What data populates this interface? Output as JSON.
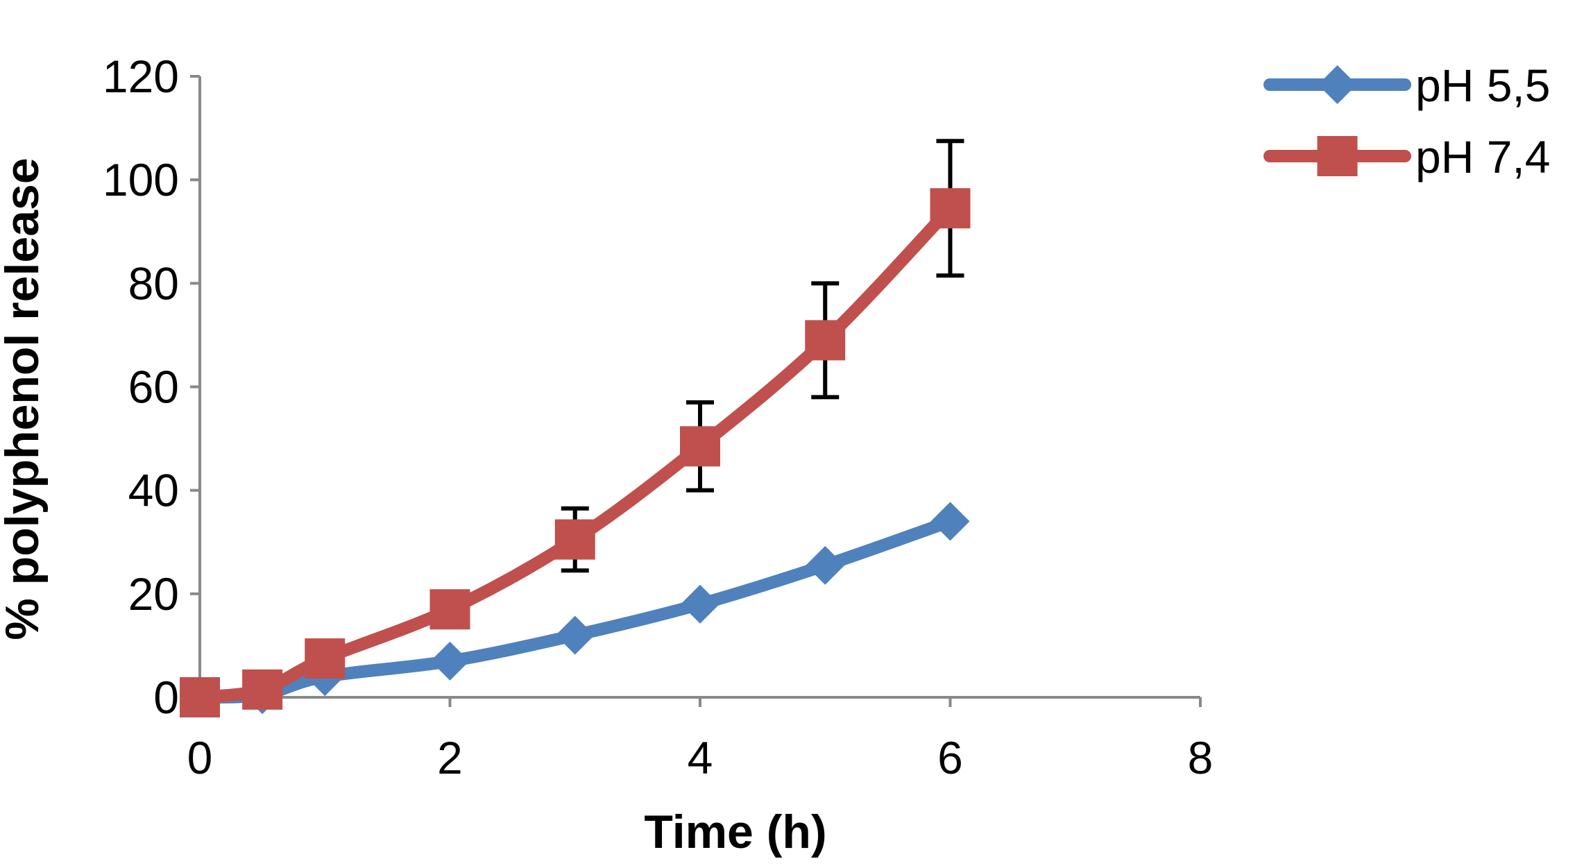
{
  "chart_data": {
    "type": "line",
    "title": "",
    "xlabel": "Time (h)",
    "ylabel": "% polyphenol release",
    "xlim": [
      0,
      8
    ],
    "ylim": [
      0,
      120
    ],
    "xticks": [
      0,
      2,
      4,
      6,
      8
    ],
    "yticks": [
      0,
      20,
      40,
      60,
      80,
      100,
      120
    ],
    "grid": false,
    "legend_position": "top-right",
    "series": [
      {
        "name": "pH 5,5",
        "color": "#4F81BD",
        "marker": "diamond",
        "x": [
          0,
          0.5,
          1,
          2,
          3,
          4,
          5,
          6
        ],
        "y": [
          0,
          0.5,
          4,
          7,
          12,
          18,
          25.5,
          34
        ],
        "error": []
      },
      {
        "name": "pH 7,4",
        "color": "#C0504D",
        "marker": "square",
        "x": [
          0,
          0.5,
          1,
          2,
          3,
          4,
          5,
          6
        ],
        "y": [
          0,
          1.5,
          7.5,
          17,
          30.5,
          48.5,
          69,
          94.5
        ],
        "error": [
          0,
          0,
          0,
          0,
          6,
          8.5,
          11,
          13
        ]
      }
    ]
  }
}
